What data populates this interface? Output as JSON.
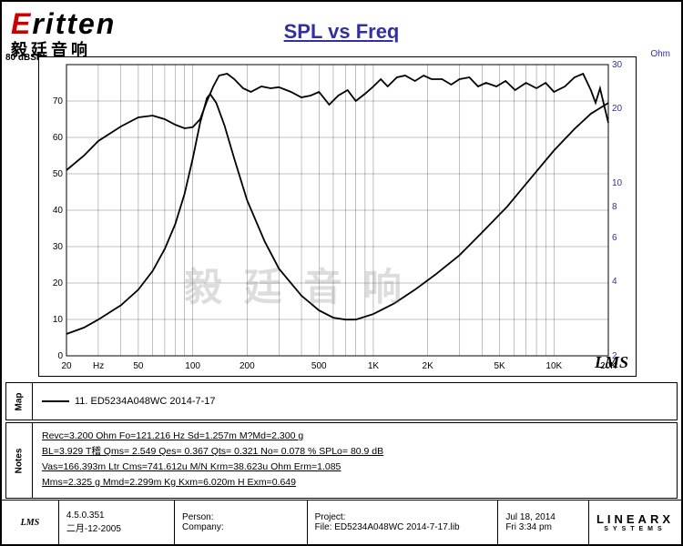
{
  "logo": {
    "brand_first": "E",
    "brand_rest": "ritten",
    "subtitle": "毅廷音响"
  },
  "title": "SPL vs Freq",
  "watermark": "毅 廷 音 响",
  "chart": {
    "type": "line-dual-axis-logx",
    "x": {
      "label": "Hz",
      "min": 20,
      "max": 20000,
      "ticks": [
        20,
        50,
        100,
        200,
        500,
        1000,
        2000,
        5000,
        10000,
        20000
      ],
      "tick_labels": [
        "20",
        "50",
        "100",
        "200",
        "500",
        "1K",
        "2K",
        "5K",
        "10K",
        "20K"
      ]
    },
    "y_left": {
      "label": "dBSPL",
      "min": 0,
      "max": 80,
      "ticks": [
        0,
        10,
        20,
        30,
        40,
        50,
        60,
        70,
        80
      ],
      "color": "#000000"
    },
    "y_right": {
      "label": "Ohm",
      "min": 2,
      "max": 30,
      "ticks": [
        2,
        4,
        6,
        8,
        10,
        20,
        30
      ],
      "color": "#3030a0",
      "scale": "log"
    },
    "background_color": "#ffffff",
    "grid_color": "#000000",
    "line_width": 1.8,
    "spl_curve": {
      "color": "#000000",
      "points": [
        [
          20,
          51
        ],
        [
          25,
          55
        ],
        [
          30,
          59
        ],
        [
          40,
          63
        ],
        [
          50,
          65.5
        ],
        [
          60,
          66
        ],
        [
          70,
          65
        ],
        [
          80,
          63.5
        ],
        [
          90,
          62.5
        ],
        [
          100,
          62.8
        ],
        [
          110,
          65
        ],
        [
          120,
          70
        ],
        [
          130,
          74
        ],
        [
          140,
          77
        ],
        [
          155,
          77.5
        ],
        [
          170,
          76
        ],
        [
          190,
          73.5
        ],
        [
          210,
          72.5
        ],
        [
          240,
          74
        ],
        [
          270,
          73.5
        ],
        [
          300,
          73.8
        ],
        [
          350,
          72.5
        ],
        [
          400,
          71
        ],
        [
          450,
          71.5
        ],
        [
          500,
          72.5
        ],
        [
          570,
          69
        ],
        [
          640,
          71.5
        ],
        [
          720,
          73
        ],
        [
          800,
          70
        ],
        [
          900,
          72
        ],
        [
          1000,
          74
        ],
        [
          1100,
          76
        ],
        [
          1200,
          74
        ],
        [
          1350,
          76.5
        ],
        [
          1500,
          77
        ],
        [
          1700,
          75.5
        ],
        [
          1900,
          77
        ],
        [
          2100,
          76
        ],
        [
          2400,
          76
        ],
        [
          2700,
          74.5
        ],
        [
          3000,
          76
        ],
        [
          3400,
          76.5
        ],
        [
          3800,
          74
        ],
        [
          4200,
          75
        ],
        [
          4800,
          74
        ],
        [
          5400,
          75.5
        ],
        [
          6100,
          73
        ],
        [
          7000,
          75
        ],
        [
          8000,
          73.5
        ],
        [
          9000,
          75
        ],
        [
          10000,
          72.5
        ],
        [
          11500,
          74
        ],
        [
          13000,
          76.5
        ],
        [
          14500,
          77.5
        ],
        [
          16000,
          73
        ],
        [
          17000,
          69.5
        ],
        [
          18000,
          73.5
        ],
        [
          20000,
          64
        ]
      ]
    },
    "imp_curve": {
      "color": "#000000",
      "points": [
        [
          20,
          2.45
        ],
        [
          25,
          2.6
        ],
        [
          30,
          2.8
        ],
        [
          40,
          3.2
        ],
        [
          50,
          3.7
        ],
        [
          60,
          4.4
        ],
        [
          70,
          5.4
        ],
        [
          80,
          6.8
        ],
        [
          90,
          9.0
        ],
        [
          100,
          12.5
        ],
        [
          110,
          17.5
        ],
        [
          120,
          22.0
        ],
        [
          125,
          22.8
        ],
        [
          135,
          21.0
        ],
        [
          150,
          17.0
        ],
        [
          170,
          12.5
        ],
        [
          200,
          8.5
        ],
        [
          250,
          5.8
        ],
        [
          300,
          4.5
        ],
        [
          400,
          3.5
        ],
        [
          500,
          3.05
        ],
        [
          600,
          2.85
        ],
        [
          700,
          2.8
        ],
        [
          800,
          2.8
        ],
        [
          1000,
          2.95
        ],
        [
          1300,
          3.25
        ],
        [
          1700,
          3.7
        ],
        [
          2200,
          4.25
        ],
        [
          3000,
          5.1
        ],
        [
          4000,
          6.3
        ],
        [
          5500,
          8.0
        ],
        [
          7500,
          10.5
        ],
        [
          10000,
          13.5
        ],
        [
          13000,
          16.5
        ],
        [
          16000,
          19.0
        ],
        [
          20000,
          21.0
        ]
      ]
    },
    "corner_label": "LMS"
  },
  "map": {
    "tab": "Map",
    "legend_label": "11. ED5234A048WC    2014-7-17"
  },
  "notes": {
    "tab": "Notes",
    "lines": [
      "Revc=3.200 Ohm  Fo=121.216 Hz  Sd=1.257m M?Md=2.300 g",
      "BL=3.929 T稽  Qms= 2.549  Qes= 0.367  Qts= 0.321  No= 0.078 %  SPLo= 80.9 dB",
      "Vas=166.393m Ltr  Cms=741.612u M/N  Krm=38.623u Ohm  Erm=1.085",
      "Mms=2.325 g  Mmd=2.299m Kg  Kxm=6.020m H  Exm=0.649"
    ]
  },
  "footer": {
    "lms": "LMS",
    "version": "4.5.0.351",
    "version_date": "二月-12-2005",
    "person_label": "Person:",
    "company_label": "Company:",
    "project_label": "Project:",
    "file_label": "File: ED5234A048WC  2014-7-17.lib",
    "date": "Jul 18, 2014",
    "time": "Fri  3:34 pm",
    "brand_top": "LINEARX",
    "brand_bot": "SYSTEMS"
  }
}
